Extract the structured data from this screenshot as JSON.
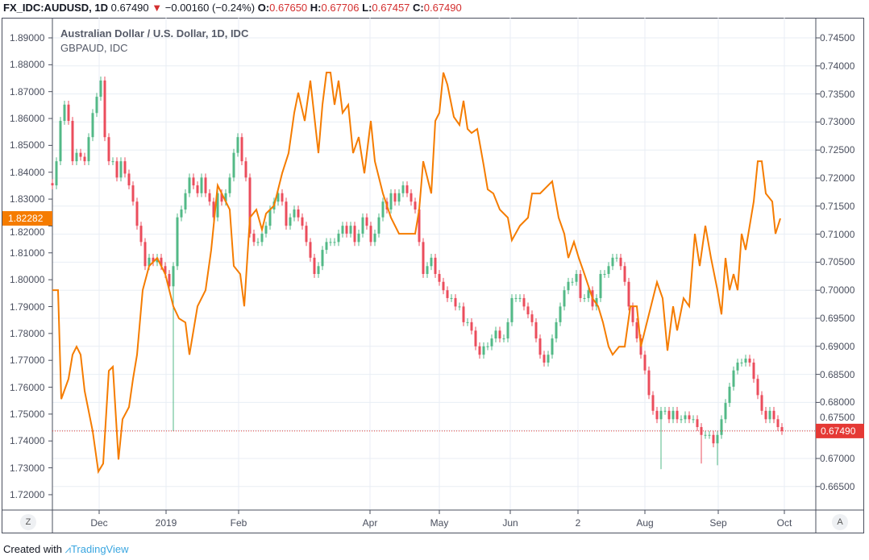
{
  "header": {
    "symbol": "FX_IDC:AUDUSD, 1D",
    "last": "0.67490",
    "change": "−0.00160 (−0.24%)",
    "o_label": "O:",
    "o": "0.67650",
    "h_label": "H:",
    "h": "0.67706",
    "l_label": "L:",
    "l": "0.67457",
    "c_label": "C:",
    "c": "0.67490"
  },
  "legend": {
    "main": "Australian Dollar / U.S. Dollar, 1D, IDC",
    "compare": "GBPAUD, IDC"
  },
  "buttons": {
    "left": "Z",
    "right": "A"
  },
  "footer": {
    "prefix": "Created with",
    "brand": "TradingView"
  },
  "colors": {
    "up": "#53b987",
    "down": "#eb4d5c",
    "line": "#f57c00",
    "grid": "#e8eef4",
    "price_line": "#e53935"
  },
  "chart_data": {
    "type": "candlestick+line",
    "left_axis": {
      "series": "GBPAUD",
      "range": [
        1.72,
        1.89
      ],
      "ticks": [
        "1.89000",
        "1.88000",
        "1.87000",
        "1.86000",
        "1.85000",
        "1.84000",
        "1.83000",
        "1.82000",
        "1.81000",
        "1.80000",
        "1.79000",
        "1.78000",
        "1.77000",
        "1.76000",
        "1.75000",
        "1.74000",
        "1.73000",
        "1.72000"
      ],
      "last_label": "1.82282",
      "last": 1.82282
    },
    "right_axis": {
      "series": "AUDUSD",
      "range": [
        0.665,
        0.745
      ],
      "ticks": [
        "0.74500",
        "0.74000",
        "0.73500",
        "0.73000",
        "0.72500",
        "0.72000",
        "0.71500",
        "0.71000",
        "0.70500",
        "0.70000",
        "0.69500",
        "0.69000",
        "0.68500",
        "0.68000",
        "0.67500",
        "0.67000",
        "0.66500"
      ],
      "last_label": "0.67490",
      "last": 0.6749
    },
    "x_ticks": [
      {
        "t": 11.6,
        "label": "Dec"
      },
      {
        "t": 28.2,
        "label": "2019"
      },
      {
        "t": 46.2,
        "label": "Feb"
      },
      {
        "t": 78.8,
        "label": "Apr"
      },
      {
        "t": 96,
        "label": "May"
      },
      {
        "t": 113.6,
        "label": "Jun"
      },
      {
        "t": 130.4,
        "label": "2"
      },
      {
        "t": 147,
        "label": "Aug"
      },
      {
        "t": 165.2,
        "label": "Sep"
      },
      {
        "t": 181.6,
        "label": "Oct"
      }
    ],
    "audusd_close": [
      0.7187,
      0.723,
      0.7302,
      0.7331,
      0.7302,
      0.723,
      0.7245,
      0.7238,
      0.723,
      0.7273,
      0.7316,
      0.7345,
      0.7374,
      0.7273,
      0.723,
      0.723,
      0.7201,
      0.723,
      0.7208,
      0.7187,
      0.7158,
      0.7115,
      0.7086,
      0.7043,
      0.7058,
      0.705,
      0.7058,
      0.7043,
      0.7029,
      0.7007,
      0.7043,
      0.713,
      0.7144,
      0.7173,
      0.7201,
      0.7187,
      0.7173,
      0.7201,
      0.7173,
      0.7158,
      0.713,
      0.7173,
      0.7158,
      0.7173,
      0.7201,
      0.7245,
      0.7273,
      0.723,
      0.7201,
      0.7101,
      0.7086,
      0.7086,
      0.7101,
      0.7115,
      0.7144,
      0.7158,
      0.7173,
      0.7158,
      0.7115,
      0.713,
      0.7144,
      0.713,
      0.7115,
      0.7086,
      0.7058,
      0.7029,
      0.7043,
      0.7072,
      0.7086,
      0.7086,
      0.7086,
      0.7101,
      0.7115,
      0.7101,
      0.7115,
      0.7086,
      0.7101,
      0.713,
      0.7115,
      0.7086,
      0.7101,
      0.713,
      0.7158,
      0.7144,
      0.7173,
      0.7158,
      0.7173,
      0.7187,
      0.7173,
      0.7158,
      0.7144,
      0.7086,
      0.7029,
      0.7043,
      0.7058,
      0.7029,
      0.7015,
      0.7,
      0.6986,
      0.6986,
      0.6971,
      0.6971,
      0.6943,
      0.6943,
      0.6928,
      0.69,
      0.6885,
      0.69,
      0.69,
      0.6914,
      0.6928,
      0.6914,
      0.6914,
      0.6943,
      0.6986,
      0.6986,
      0.6986,
      0.6971,
      0.6957,
      0.6943,
      0.6914,
      0.6885,
      0.6871,
      0.6885,
      0.6914,
      0.6943,
      0.6971,
      0.7,
      0.7015,
      0.7015,
      0.7029,
      0.6986,
      0.6986,
      0.7,
      0.6971,
      0.6986,
      0.7029,
      0.7029,
      0.7043,
      0.7058,
      0.7058,
      0.7043,
      0.7015,
      0.6971,
      0.6943,
      0.6914,
      0.6885,
      0.6857,
      0.6813,
      0.6785,
      0.677,
      0.6785,
      0.6785,
      0.677,
      0.6785,
      0.677,
      0.677,
      0.6777,
      0.677,
      0.677,
      0.6756,
      0.6742,
      0.6742,
      0.6742,
      0.6727,
      0.6742,
      0.677,
      0.6799,
      0.6828,
      0.6857,
      0.6871,
      0.6871,
      0.6878,
      0.6871,
      0.6842,
      0.6813,
      0.6785,
      0.677,
      0.6785,
      0.677,
      0.6756,
      0.6749
    ],
    "audusd_spikes": [
      {
        "t": 29.6,
        "low": 0.6749
      },
      {
        "t": 151,
        "low": 0.6681
      },
      {
        "t": 161,
        "low": 0.6691
      },
      {
        "t": 165,
        "low": 0.6688
      }
    ],
    "gbpaud": [
      [
        0,
        1.7961
      ],
      [
        1.4,
        1.7961
      ],
      [
        2.2,
        1.7556
      ],
      [
        4,
        1.7631
      ],
      [
        5,
        1.7721
      ],
      [
        6,
        1.7751
      ],
      [
        7,
        1.7721
      ],
      [
        8,
        1.7586
      ],
      [
        10,
        1.7436
      ],
      [
        11.4,
        1.7286
      ],
      [
        12.6,
        1.7316
      ],
      [
        14,
        1.7661
      ],
      [
        15,
        1.7676
      ],
      [
        16.4,
        1.7331
      ],
      [
        17.4,
        1.7481
      ],
      [
        19,
        1.7526
      ],
      [
        20,
        1.7631
      ],
      [
        21,
        1.7721
      ],
      [
        22.4,
        1.7961
      ],
      [
        24,
        1.8051
      ],
      [
        26,
        1.8081
      ],
      [
        28,
        1.8021
      ],
      [
        30,
        1.7901
      ],
      [
        31.4,
        1.7856
      ],
      [
        33,
        1.7841
      ],
      [
        34,
        1.7721
      ],
      [
        36,
        1.7901
      ],
      [
        38,
        1.7961
      ],
      [
        39.4,
        1.8111
      ],
      [
        41,
        1.8351
      ],
      [
        43,
        1.8291
      ],
      [
        44,
        1.8261
      ],
      [
        45,
        1.8051
      ],
      [
        46.6,
        1.8021
      ],
      [
        47.6,
        1.7901
      ],
      [
        49,
        1.8231
      ],
      [
        50.6,
        1.8261
      ],
      [
        52,
        1.8186
      ],
      [
        53,
        1.8246
      ],
      [
        55,
        1.8276
      ],
      [
        57,
        1.8396
      ],
      [
        58.6,
        1.8471
      ],
      [
        60,
        1.8621
      ],
      [
        61,
        1.8696
      ],
      [
        62.6,
        1.8591
      ],
      [
        64,
        1.8741
      ],
      [
        66,
        1.8471
      ],
      [
        67,
        1.8651
      ],
      [
        68,
        1.8771
      ],
      [
        69,
        1.8771
      ],
      [
        70,
        1.8651
      ],
      [
        71,
        1.8741
      ],
      [
        72,
        1.8621
      ],
      [
        73.4,
        1.8651
      ],
      [
        74.6,
        1.8471
      ],
      [
        76,
        1.8531
      ],
      [
        77.4,
        1.8396
      ],
      [
        79,
        1.8591
      ],
      [
        80,
        1.8441
      ],
      [
        82,
        1.8321
      ],
      [
        84,
        1.8231
      ],
      [
        86,
        1.8171
      ],
      [
        88,
        1.8171
      ],
      [
        90,
        1.8171
      ],
      [
        91,
        1.8261
      ],
      [
        92,
        1.8441
      ],
      [
        94,
        1.8321
      ],
      [
        95,
        1.8591
      ],
      [
        96,
        1.8621
      ],
      [
        97,
        1.8771
      ],
      [
        98,
        1.8726
      ],
      [
        99.6,
        1.8606
      ],
      [
        101,
        1.8576
      ],
      [
        102,
        1.8666
      ],
      [
        103,
        1.8561
      ],
      [
        104,
        1.8546
      ],
      [
        105.4,
        1.8561
      ],
      [
        107,
        1.8426
      ],
      [
        108,
        1.8336
      ],
      [
        109.4,
        1.8321
      ],
      [
        111,
        1.8261
      ],
      [
        113,
        1.8231
      ],
      [
        114,
        1.8147
      ],
      [
        116,
        1.8201
      ],
      [
        118,
        1.8231
      ],
      [
        119,
        1.8321
      ],
      [
        121,
        1.8321
      ],
      [
        123,
        1.8351
      ],
      [
        124,
        1.8366
      ],
      [
        125.6,
        1.8231
      ],
      [
        127,
        1.8171
      ],
      [
        128,
        1.8081
      ],
      [
        129.4,
        1.8141
      ],
      [
        130.6,
        1.8081
      ],
      [
        132,
        1.8021
      ],
      [
        134,
        1.7931
      ],
      [
        135.4,
        1.7901
      ],
      [
        136.6,
        1.7841
      ],
      [
        138,
        1.7751
      ],
      [
        139,
        1.7721
      ],
      [
        140.6,
        1.7751
      ],
      [
        142,
        1.7751
      ],
      [
        143.4,
        1.7901
      ],
      [
        145,
        1.7901
      ],
      [
        146,
        1.7751
      ],
      [
        148,
        1.7871
      ],
      [
        150,
        1.7991
      ],
      [
        151.4,
        1.7931
      ],
      [
        152.6,
        1.7736
      ],
      [
        154,
        1.7901
      ],
      [
        155,
        1.7811
      ],
      [
        156.6,
        1.7931
      ],
      [
        158,
        1.7901
      ],
      [
        159.4,
        1.8171
      ],
      [
        160.6,
        1.8051
      ],
      [
        162,
        1.8201
      ],
      [
        163.4,
        1.8081
      ],
      [
        165,
        1.7961
      ],
      [
        166,
        1.7871
      ],
      [
        167,
        1.8081
      ],
      [
        168,
        1.7961
      ],
      [
        169,
        1.8021
      ],
      [
        170,
        1.7961
      ],
      [
        171,
        1.8171
      ],
      [
        172,
        1.8111
      ],
      [
        174,
        1.8291
      ],
      [
        175,
        1.8441
      ],
      [
        176,
        1.8441
      ],
      [
        177,
        1.8321
      ],
      [
        178.6,
        1.8291
      ],
      [
        179.4,
        1.8171
      ],
      [
        180.6,
        1.8228
      ]
    ]
  }
}
